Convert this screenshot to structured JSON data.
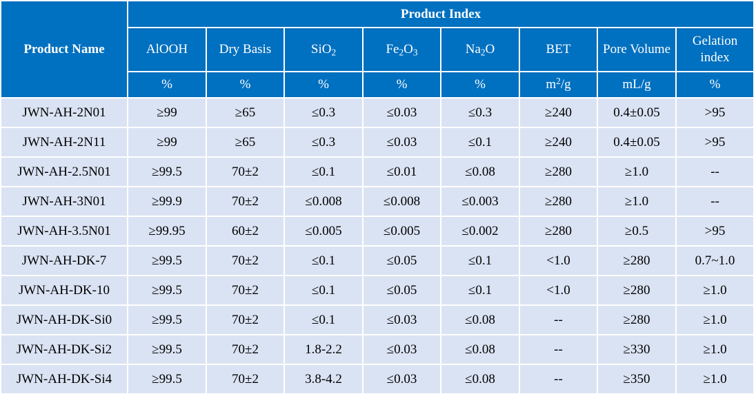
{
  "header": {
    "product_name": "Product Name",
    "product_index": "Product Index",
    "columns": [
      {
        "label": "AlOOH",
        "unit": "%"
      },
      {
        "label": "Dry Basis",
        "unit": "%"
      },
      {
        "label_base": "SiO",
        "label_sub": "2",
        "unit": "%"
      },
      {
        "label_base": "Fe",
        "label_sub": "2",
        "label_mid": "O",
        "label_sub2": "3",
        "unit": "%"
      },
      {
        "label_base": "Na",
        "label_sub": "2",
        "label_mid": "O",
        "unit": "%"
      },
      {
        "label": "BET",
        "unit_base": "m",
        "unit_sup": "2",
        "unit_rest": "/g"
      },
      {
        "label": "Pore Volume",
        "unit": "mL/g"
      },
      {
        "label": "Gelation index",
        "unit": "%"
      }
    ]
  },
  "rows": [
    {
      "name": "JWN-AH-2N01",
      "cells": [
        "≥99",
        "≥65",
        "≤0.3",
        "≤0.03",
        "≤0.3",
        "≥240",
        "0.4±0.05",
        ">95"
      ]
    },
    {
      "name": "JWN-AH-2N11",
      "cells": [
        "≥99",
        "≥65",
        "≤0.3",
        "≤0.03",
        "≤0.1",
        "≥240",
        "0.4±0.05",
        ">95"
      ]
    },
    {
      "name": "JWN-AH-2.5N01",
      "cells": [
        "≥99.5",
        "70±2",
        "≤0.1",
        "≤0.01",
        "≤0.08",
        "≥280",
        "≥1.0",
        "--"
      ]
    },
    {
      "name": "JWN-AH-3N01",
      "cells": [
        "≥99.9",
        "70±2",
        "≤0.008",
        "≤0.008",
        "≤0.003",
        "≥280",
        "≥1.0",
        "--"
      ]
    },
    {
      "name": "JWN-AH-3.5N01",
      "cells": [
        "≥99.95",
        "60±2",
        "≤0.005",
        "≤0.005",
        "≤0.002",
        "≥280",
        "≥0.5",
        ">95"
      ]
    },
    {
      "name": "JWN-AH-DK-7",
      "cells": [
        "≥99.5",
        "70±2",
        "≤0.1",
        "≤0.05",
        "≤0.1",
        "<1.0",
        "≥280",
        "0.7~1.0"
      ]
    },
    {
      "name": "JWN-AH-DK-10",
      "cells": [
        "≥99.5",
        "70±2",
        "≤0.1",
        "≤0.05",
        "≤0.1",
        "<1.0",
        "≥280",
        "≥1.0"
      ]
    },
    {
      "name": "JWN-AH-DK-Si0",
      "cells": [
        "≥99.5",
        "70±2",
        "≤0.1",
        "≤0.03",
        "≤0.08",
        "--",
        "≥280",
        "≥1.0"
      ]
    },
    {
      "name": "JWN-AH-DK-Si2",
      "cells": [
        "≥99.5",
        "70±2",
        "1.8-2.2",
        "≤0.03",
        "≤0.08",
        "--",
        "≥330",
        "≥1.0"
      ]
    },
    {
      "name": "JWN-AH-DK-Si4",
      "cells": [
        "≥99.5",
        "70±2",
        "3.8-4.2",
        "≤0.03",
        "≤0.08",
        "--",
        "≥350",
        "≥1.0"
      ]
    }
  ],
  "colors": {
    "header_bg": "#0070c0",
    "body_bg": "#dae3f3",
    "grid": "#ffffff"
  }
}
